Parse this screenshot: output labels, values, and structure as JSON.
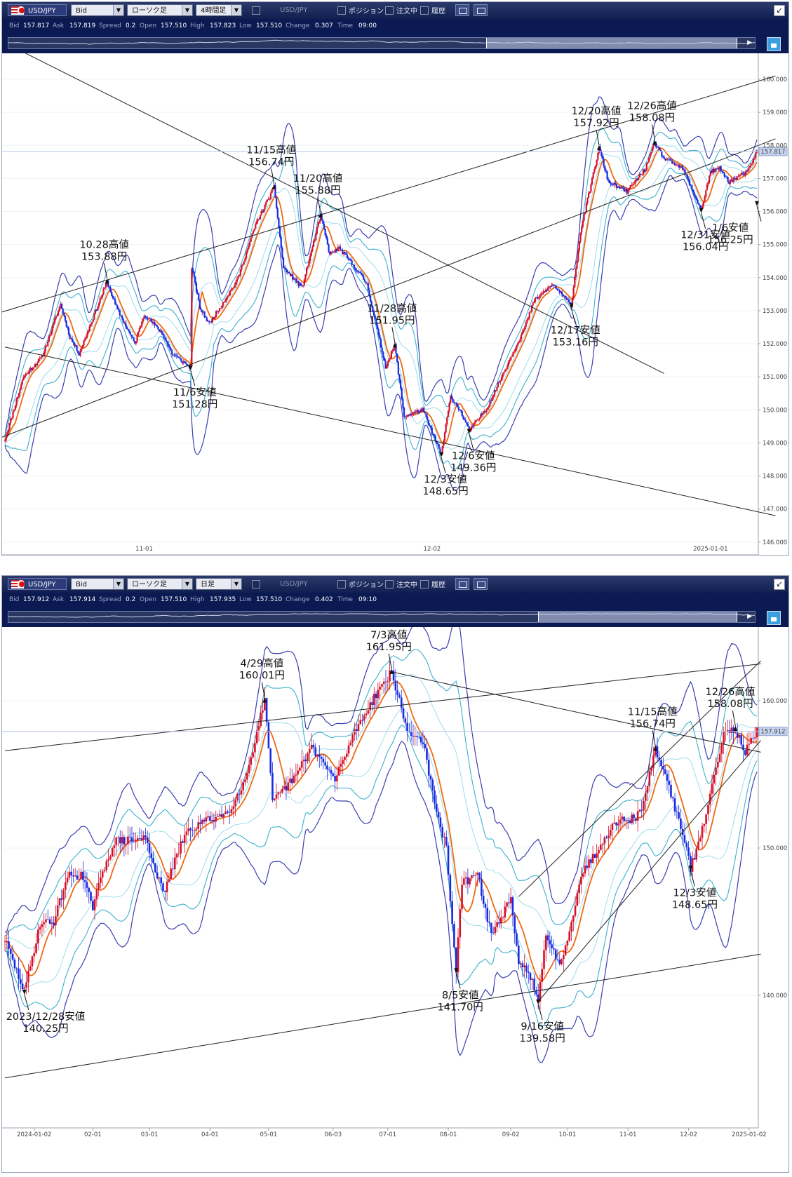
{
  "panels": [
    {
      "toolbar": {
        "symbol": "USD/JPY",
        "price_type": "Bid",
        "chart_type": "ローソク足",
        "timeframe": "4時間足",
        "symbol2": "USD/JPY",
        "checkbox_position": "ポジション",
        "checkbox_orders": "注文中",
        "checkbox_history": "履歴"
      },
      "quote": {
        "bid_label": "Bid",
        "bid": "157.817",
        "ask_label": "Ask",
        "ask": "157.819",
        "spread_label": "Spread",
        "spread": "0.2",
        "open_label": "Open",
        "open": "157.510",
        "high_label": "High",
        "high": "157.823",
        "low_label": "Low",
        "low": "157.510",
        "change_label": "Change",
        "change": "0.307",
        "time_label": "Time",
        "time": "09:00"
      },
      "navigator": {
        "range_start": 0.64,
        "range_end": 0.975
      },
      "current_price_label": "157.817",
      "chart_data": {
        "type": "candlestick",
        "timeframe": "4h",
        "x_range": [
          "2024-10-17",
          "2025-01-06"
        ],
        "ylim": [
          145.7,
          160.7
        ],
        "y_ticks": [
          "146.000",
          "147.000",
          "148.000",
          "149.000",
          "150.000",
          "151.000",
          "152.000",
          "153.000",
          "154.000",
          "155.000",
          "156.000",
          "157.000",
          "158.000",
          "159.000",
          "160.000"
        ],
        "x_ticks": [
          {
            "label": "11-01",
            "date": "2024-11-01"
          },
          {
            "label": "12-02",
            "date": "2024-12-02"
          },
          {
            "label": "2025-01-01",
            "date": "2025-01-01"
          }
        ],
        "current_price": 157.817,
        "bollinger": true,
        "moving_average_color": "#ee6a10",
        "pivots": [
          [
            "2024-10-17",
            149.1
          ],
          [
            "2024-10-19",
            151.0
          ],
          [
            "2024-10-21",
            151.6
          ],
          [
            "2024-10-23",
            153.2
          ],
          [
            "2024-10-24",
            152.2
          ],
          [
            "2024-10-25",
            151.7
          ],
          [
            "2024-10-28",
            153.88
          ],
          [
            "2024-10-29",
            153.1
          ],
          [
            "2024-10-31",
            152.0
          ],
          [
            "2024-11-01",
            152.9
          ],
          [
            "2024-11-03",
            152.3
          ],
          [
            "2024-11-04",
            151.7
          ],
          [
            "2024-11-06",
            151.28
          ],
          [
            "2024-11-06",
            154.5
          ],
          [
            "2024-11-07",
            153.1
          ],
          [
            "2024-11-08",
            152.6
          ],
          [
            "2024-11-11",
            153.9
          ],
          [
            "2024-11-13",
            155.6
          ],
          [
            "2024-11-15",
            156.74
          ],
          [
            "2024-11-16",
            154.3
          ],
          [
            "2024-11-18",
            153.7
          ],
          [
            "2024-11-20",
            155.88
          ],
          [
            "2024-11-21",
            154.7
          ],
          [
            "2024-11-22",
            154.9
          ],
          [
            "2024-11-24",
            154.2
          ],
          [
            "2024-11-25",
            153.8
          ],
          [
            "2024-11-27",
            151.3
          ],
          [
            "2024-11-28",
            151.95
          ],
          [
            "2024-11-29",
            149.8
          ],
          [
            "2024-12-01",
            150.0
          ],
          [
            "2024-12-03",
            148.65
          ],
          [
            "2024-12-04",
            150.4
          ],
          [
            "2024-12-05",
            150.0
          ],
          [
            "2024-12-06",
            149.36
          ],
          [
            "2024-12-08",
            150.1
          ],
          [
            "2024-12-10",
            151.3
          ],
          [
            "2024-12-12",
            152.5
          ],
          [
            "2024-12-13",
            153.3
          ],
          [
            "2024-12-15",
            153.8
          ],
          [
            "2024-12-17",
            153.16
          ],
          [
            "2024-12-18",
            155.4
          ],
          [
            "2024-12-20",
            157.92
          ],
          [
            "2024-12-21",
            156.9
          ],
          [
            "2024-12-23",
            156.6
          ],
          [
            "2024-12-25",
            157.3
          ],
          [
            "2024-12-26",
            158.08
          ],
          [
            "2024-12-27",
            157.6
          ],
          [
            "2024-12-29",
            157.3
          ],
          [
            "2024-12-31",
            156.04
          ],
          [
            "2025-01-01",
            157.2
          ],
          [
            "2025-01-02",
            157.3
          ],
          [
            "2025-01-03",
            156.9
          ],
          [
            "2025-01-05",
            157.2
          ],
          [
            "2025-01-06",
            157.82
          ]
        ],
        "annotations": [
          {
            "date": "2024-10-28",
            "price": 153.88,
            "line1": "10.28高値",
            "line2": "153.88円",
            "pos": "above"
          },
          {
            "date": "2024-11-06",
            "price": 151.28,
            "line1": "11/6安値",
            "line2": "151.28円",
            "pos": "below"
          },
          {
            "date": "2024-11-15",
            "price": 156.74,
            "line1": "11/15高値",
            "line2": "156.74円",
            "pos": "above"
          },
          {
            "date": "2024-11-20",
            "price": 155.88,
            "line1": "11/20高値",
            "line2": "155.88円",
            "pos": "above"
          },
          {
            "date": "2024-11-28",
            "price": 151.95,
            "line1": "11/28高値",
            "line2": "151.95円",
            "pos": "above"
          },
          {
            "date": "2024-12-03",
            "price": 148.65,
            "line1": "12/3安値",
            "line2": "148.65円",
            "pos": "below"
          },
          {
            "date": "2024-12-06",
            "price": 149.36,
            "line1": "12/6安値",
            "line2": "149.36円",
            "pos": "below"
          },
          {
            "date": "2024-12-17",
            "price": 153.16,
            "line1": "12/17安値",
            "line2": "153.16円",
            "pos": "below"
          },
          {
            "date": "2024-12-20",
            "price": 157.92,
            "line1": "12/20高値",
            "line2": "157.92円",
            "pos": "above"
          },
          {
            "date": "2024-12-26",
            "price": 158.08,
            "line1": "12/26高値",
            "line2": "158.08円",
            "pos": "above"
          },
          {
            "date": "2024-12-31",
            "price": 156.04,
            "line1": "12/31安値",
            "line2": "156.04円",
            "pos": "below"
          },
          {
            "date": "2025-01-06",
            "price": 156.25,
            "line1": "1/6安値",
            "line2": "156.25円",
            "pos": "below"
          }
        ],
        "trendlines": [
          [
            [
              "2024-10-16",
              152.9
            ],
            [
              "2025-01-08",
              160.1
            ]
          ],
          [
            [
              "2024-10-16",
              149.1
            ],
            [
              "2025-01-08",
              158.2
            ]
          ],
          [
            [
              "2024-10-17",
              151.9
            ],
            [
              "2025-01-08",
              146.8
            ]
          ],
          [
            [
              "2024-10-17",
              161.1
            ],
            [
              "2024-12-27",
              151.1
            ]
          ]
        ]
      }
    },
    {
      "toolbar": {
        "symbol": "USD/JPY",
        "price_type": "Bid",
        "chart_type": "ローソク足",
        "timeframe": "日足",
        "symbol2": "USD/JPY",
        "checkbox_position": "ポジション",
        "checkbox_orders": "注文中",
        "checkbox_history": "履歴"
      },
      "quote": {
        "bid_label": "Bid",
        "bid": "157.912",
        "ask_label": "Ask",
        "ask": "157.914",
        "spread_label": "Spread",
        "spread": "0.2",
        "open_label": "Open",
        "open": "157.510",
        "high_label": "High",
        "high": "157.935",
        "low_label": "Low",
        "low": "157.510",
        "change_label": "Change",
        "change": "0.402",
        "time_label": "Time",
        "time": "09:10"
      },
      "navigator": {
        "range_start": 0.71,
        "range_end": 0.975
      },
      "current_price_label": "157.912",
      "chart_data": {
        "type": "candlestick",
        "timeframe": "1d",
        "x_range": [
          "2023-12-18",
          "2025-01-06"
        ],
        "ylim": [
          131.2,
          164.8
        ],
        "y_ticks": [
          "140.000",
          "150.000",
          "160.000"
        ],
        "x_ticks": [
          {
            "label": "2024-01-02",
            "date": "2024-01-02"
          },
          {
            "label": "02-01",
            "date": "2024-02-01"
          },
          {
            "label": "03-01",
            "date": "2024-03-01"
          },
          {
            "label": "04-01",
            "date": "2024-04-01"
          },
          {
            "label": "05-01",
            "date": "2024-05-01"
          },
          {
            "label": "06-03",
            "date": "2024-06-03"
          },
          {
            "label": "07-01",
            "date": "2024-07-01"
          },
          {
            "label": "08-01",
            "date": "2024-08-01"
          },
          {
            "label": "09-02",
            "date": "2024-09-02"
          },
          {
            "label": "10-01",
            "date": "2024-10-01"
          },
          {
            "label": "11-01",
            "date": "2024-11-01"
          },
          {
            "label": "12-02",
            "date": "2024-12-02"
          },
          {
            "label": "2025-01-02",
            "date": "2025-01-02"
          }
        ],
        "current_price": 157.912,
        "bollinger": true,
        "moving_average_color": "#ee6a10",
        "pivots": [
          [
            "2023-12-18",
            143.8
          ],
          [
            "2023-12-22",
            142.3
          ],
          [
            "2023-12-28",
            140.25
          ],
          [
            "2024-01-05",
            144.9
          ],
          [
            "2024-01-12",
            145.0
          ],
          [
            "2024-01-19",
            148.1
          ],
          [
            "2024-01-26",
            148.2
          ],
          [
            "2024-02-01",
            146.0
          ],
          [
            "2024-02-08",
            149.2
          ],
          [
            "2024-02-13",
            150.5
          ],
          [
            "2024-02-22",
            150.5
          ],
          [
            "2024-02-28",
            150.7
          ],
          [
            "2024-03-08",
            146.9
          ],
          [
            "2024-03-19",
            150.9
          ],
          [
            "2024-03-27",
            151.7
          ],
          [
            "2024-04-10",
            152.4
          ],
          [
            "2024-04-19",
            154.6
          ],
          [
            "2024-04-29",
            160.01
          ],
          [
            "2024-05-03",
            153.1
          ],
          [
            "2024-05-15",
            154.9
          ],
          [
            "2024-05-23",
            156.9
          ],
          [
            "2024-06-04",
            154.6
          ],
          [
            "2024-06-14",
            157.9
          ],
          [
            "2024-06-26",
            160.7
          ],
          [
            "2024-07-03",
            161.95
          ],
          [
            "2024-07-11",
            157.9
          ],
          [
            "2024-07-19",
            157.3
          ],
          [
            "2024-07-25",
            152.9
          ],
          [
            "2024-07-31",
            150.0
          ],
          [
            "2024-08-05",
            141.7
          ],
          [
            "2024-08-08",
            147.6
          ],
          [
            "2024-08-16",
            148.2
          ],
          [
            "2024-08-23",
            144.1
          ],
          [
            "2024-09-02",
            146.5
          ],
          [
            "2024-09-06",
            142.0
          ],
          [
            "2024-09-11",
            141.8
          ],
          [
            "2024-09-16",
            139.58
          ],
          [
            "2024-09-20",
            143.9
          ],
          [
            "2024-09-27",
            142.2
          ],
          [
            "2024-10-01",
            143.8
          ],
          [
            "2024-10-08",
            148.2
          ],
          [
            "2024-10-21",
            150.8
          ],
          [
            "2024-10-24",
            151.8
          ],
          [
            "2024-11-04",
            152.0
          ],
          [
            "2024-11-08",
            152.6
          ],
          [
            "2024-11-15",
            156.74
          ],
          [
            "2024-11-20",
            155.0
          ],
          [
            "2024-11-28",
            151.4
          ],
          [
            "2024-12-03",
            148.65
          ],
          [
            "2024-12-09",
            151.2
          ],
          [
            "2024-12-13",
            153.6
          ],
          [
            "2024-12-20",
            157.92
          ],
          [
            "2024-12-26",
            158.08
          ],
          [
            "2024-12-31",
            156.5
          ],
          [
            "2025-01-06",
            157.9
          ]
        ],
        "annotations": [
          {
            "date": "2023-12-28",
            "price": 140.25,
            "line1": "2023/12/28安値",
            "line2": "140.25円",
            "pos": "below"
          },
          {
            "date": "2024-04-29",
            "price": 160.01,
            "line1": "4/29高値",
            "line2": "160.01円",
            "pos": "above"
          },
          {
            "date": "2024-07-03",
            "price": 161.95,
            "line1": "7/3高値",
            "line2": "161.95円",
            "pos": "above"
          },
          {
            "date": "2024-08-05",
            "price": 141.7,
            "line1": "8/5安値",
            "line2": "141.70円",
            "pos": "below"
          },
          {
            "date": "2024-09-16",
            "price": 139.58,
            "line1": "9/16安値",
            "line2": "139.58円",
            "pos": "below"
          },
          {
            "date": "2024-11-15",
            "price": 156.74,
            "line1": "11/15高値",
            "line2": "156.74円",
            "pos": "above"
          },
          {
            "date": "2024-12-03",
            "price": 148.65,
            "line1": "12/3安値",
            "line2": "148.65円",
            "pos": "below"
          },
          {
            "date": "2024-12-26",
            "price": 158.08,
            "line1": "12/26高値",
            "line2": "158.08円",
            "pos": "above"
          }
        ],
        "trendlines": [
          [
            [
              "2023-12-18",
              156.6
            ],
            [
              "2025-01-08",
              162.5
            ]
          ],
          [
            [
              "2023-12-18",
              134.4
            ],
            [
              "2025-01-08",
              142.8
            ]
          ],
          [
            [
              "2024-07-03",
              161.95
            ],
            [
              "2025-01-08",
              156.5
            ]
          ],
          [
            [
              "2024-09-06",
              146.7
            ],
            [
              "2025-01-08",
              162.7
            ]
          ],
          [
            [
              "2024-09-16",
              139.58
            ],
            [
              "2025-01-08",
              157.3
            ]
          ]
        ]
      }
    }
  ]
}
